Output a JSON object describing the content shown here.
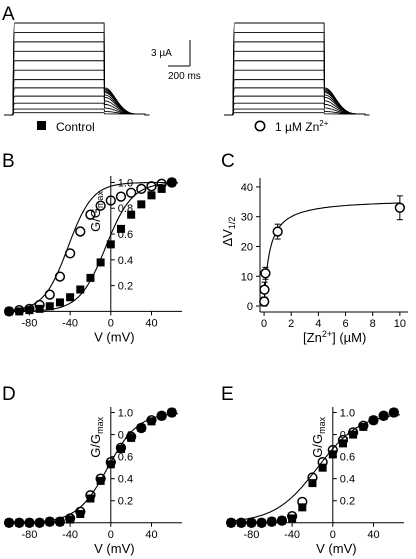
{
  "panels": {
    "A": "A",
    "B": "B",
    "C": "C",
    "D": "D",
    "E": "E"
  },
  "legend": {
    "control": "Control",
    "zinc_prefix": "1 µM Zn",
    "zinc_sup": "2+"
  },
  "scale_bar": {
    "current": "3 µA",
    "time": "200 ms"
  },
  "colors": {
    "ink": "#000000",
    "background": "#ffffff"
  },
  "chart_data": [
    {
      "panel": "A",
      "type": "line",
      "traces": [
        {
          "condition": "Control",
          "steady_levels_uA": [
            0.2,
            0.5,
            1.0,
            1.6,
            2.3,
            3.0,
            3.8,
            4.6,
            5.4,
            6.2,
            7.0,
            7.8
          ],
          "tail_amplitude_uA": [
            0.1,
            0.3,
            0.6,
            0.9,
            1.2,
            1.5,
            1.7,
            1.9,
            2.0,
            2.1,
            2.2,
            2.3
          ]
        },
        {
          "condition": "1 µM Zn2+",
          "steady_levels_uA": [
            0.2,
            0.5,
            1.0,
            1.6,
            2.3,
            3.0,
            3.8,
            4.6,
            5.4,
            6.2,
            7.0,
            7.8
          ],
          "tail_amplitude_uA": [
            0.1,
            0.3,
            0.6,
            0.9,
            1.2,
            1.5,
            1.7,
            1.9,
            2.0,
            2.1,
            2.2,
            2.3
          ]
        }
      ]
    },
    {
      "panel": "B",
      "type": "scatter",
      "xlabel": "V (mV)",
      "ylabel": "G/G",
      "ylabel_sub": "max",
      "xlim": [
        -105,
        70
      ],
      "ylim": [
        -0.02,
        1.05
      ],
      "xticks": [
        -80,
        -40,
        0,
        40
      ],
      "yticks": [
        0.2,
        0.4,
        0.6,
        0.8,
        1.0
      ],
      "series": [
        {
          "name": "Control",
          "marker": "filled-square",
          "x": [
            -100,
            -90,
            -80,
            -70,
            -60,
            -50,
            -40,
            -30,
            -20,
            -10,
            0,
            10,
            20,
            30,
            40,
            50,
            60
          ],
          "y": [
            0.0,
            0.0,
            0.01,
            0.02,
            0.04,
            0.07,
            0.11,
            0.17,
            0.26,
            0.38,
            0.52,
            0.64,
            0.75,
            0.83,
            0.9,
            0.95,
            1.0
          ]
        },
        {
          "name": "1 µM Zn2+",
          "marker": "open-circle",
          "x": [
            -100,
            -90,
            -80,
            -70,
            -60,
            -50,
            -40,
            -30,
            -20,
            -10,
            0,
            10,
            20,
            30,
            40,
            50,
            60
          ],
          "y": [
            0.0,
            0.01,
            0.02,
            0.05,
            0.13,
            0.27,
            0.45,
            0.62,
            0.75,
            0.82,
            0.86,
            0.89,
            0.92,
            0.95,
            0.97,
            0.99,
            1.0
          ]
        }
      ],
      "fits": [
        {
          "v_half": -5,
          "k": 13
        },
        {
          "v_half": -42,
          "k": 12
        }
      ]
    },
    {
      "panel": "C",
      "type": "scatter",
      "xlabel_prefix": "[Zn",
      "xlabel_sup": "2+",
      "xlabel_suffix": "] (µM)",
      "ylabel": "ΔV",
      "ylabel_sub": "1/2",
      "xlim": [
        -0.3,
        10.6
      ],
      "ylim": [
        -2,
        43
      ],
      "xticks": [
        0,
        2,
        4,
        6,
        8,
        10
      ],
      "yticks": [
        0,
        10,
        20,
        30,
        40
      ],
      "x": [
        0.01,
        0.03,
        0.1,
        1,
        10
      ],
      "y": [
        1.5,
        5.5,
        11,
        25,
        33
      ],
      "err": [
        1.5,
        2.5,
        2,
        2.5,
        4
      ],
      "fit": {
        "vmax": 36,
        "kd": 0.4
      }
    },
    {
      "panel": "D",
      "type": "scatter",
      "xlabel": "V (mV)",
      "ylabel": "G/G",
      "ylabel_sub": "max",
      "xlim": [
        -105,
        70
      ],
      "ylim": [
        -0.02,
        1.05
      ],
      "xticks": [
        -80,
        -40,
        0,
        40
      ],
      "yticks": [
        0.2,
        0.4,
        0.6,
        0.8,
        1.0
      ],
      "series": [
        {
          "name": "Control",
          "marker": "filled-square",
          "x": [
            -100,
            -90,
            -80,
            -70,
            -60,
            -50,
            -40,
            -30,
            -20,
            -10,
            0,
            10,
            20,
            30,
            40,
            50,
            60
          ],
          "y": [
            0.0,
            0.0,
            0.0,
            0.0,
            0.01,
            0.01,
            0.03,
            0.08,
            0.22,
            0.38,
            0.53,
            0.67,
            0.77,
            0.86,
            0.92,
            0.97,
            1.0
          ]
        },
        {
          "name": "1 µM Zn2+",
          "marker": "open-circle",
          "x": [
            -100,
            -90,
            -80,
            -70,
            -60,
            -50,
            -40,
            -30,
            -20,
            -10,
            0,
            10,
            20,
            30,
            40,
            50,
            60
          ],
          "y": [
            0.0,
            0.0,
            0.0,
            0.0,
            0.01,
            0.01,
            0.04,
            0.1,
            0.25,
            0.4,
            0.55,
            0.68,
            0.78,
            0.86,
            0.93,
            0.97,
            1.0
          ]
        }
      ],
      "fits": [
        {
          "v_half": -3,
          "k": 15
        }
      ]
    },
    {
      "panel": "E",
      "type": "scatter",
      "xlabel": "V (mV)",
      "ylabel": "G/G",
      "ylabel_sub": "max",
      "xlim": [
        -105,
        70
      ],
      "ylim": [
        -0.02,
        1.05
      ],
      "xticks": [
        -80,
        -40,
        0,
        40
      ],
      "yticks": [
        0.2,
        0.4,
        0.6,
        0.8,
        1.0
      ],
      "series": [
        {
          "name": "Control",
          "marker": "filled-square",
          "x": [
            -100,
            -90,
            -80,
            -70,
            -60,
            -50,
            -40,
            -30,
            -20,
            -10,
            0,
            10,
            20,
            30,
            40,
            50,
            60
          ],
          "y": [
            0.0,
            0.0,
            0.0,
            0.0,
            0.01,
            0.02,
            0.04,
            0.14,
            0.36,
            0.5,
            0.62,
            0.72,
            0.8,
            0.87,
            0.93,
            0.97,
            1.0
          ]
        },
        {
          "name": "1 µM Zn2+",
          "marker": "open-circle",
          "x": [
            -100,
            -90,
            -80,
            -70,
            -60,
            -50,
            -40,
            -30,
            -20,
            -10,
            0,
            10,
            20,
            30,
            40,
            50,
            60
          ],
          "y": [
            0.0,
            0.0,
            0.0,
            0.0,
            0.01,
            0.02,
            0.06,
            0.19,
            0.41,
            0.55,
            0.66,
            0.75,
            0.82,
            0.88,
            0.93,
            0.97,
            1.0
          ]
        }
      ],
      "fits": [
        {
          "v_half": -15,
          "k": 21
        }
      ]
    }
  ]
}
